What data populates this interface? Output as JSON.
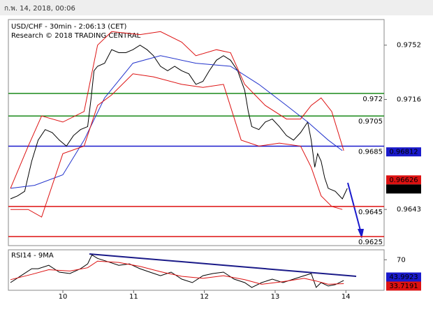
{
  "header": {
    "timestamp": "ก.พ. 14, 2018, 00:06"
  },
  "chart_data": [
    {
      "type": "line",
      "title": "USD/CHF - 30min - 2:06:13 (CET)",
      "subtitle": "Research © 2018 TRADING CENTRAL",
      "xlim": [
        9.23,
        14.54
      ],
      "xticks": [
        10,
        11,
        12,
        13,
        14
      ],
      "ylim": [
        0.9619,
        0.9769
      ],
      "yticks": [
        0.9643,
        0.9716,
        0.9752
      ],
      "series": [
        {
          "color": "#000000",
          "x": [
            9.26,
            9.36,
            9.46,
            9.56,
            9.65,
            9.75,
            9.85,
            9.95,
            10.05,
            10.15,
            10.25,
            10.35,
            10.4,
            10.44,
            10.49,
            10.59,
            10.69,
            10.79,
            10.89,
            10.99,
            11.09,
            11.19,
            11.28,
            11.38,
            11.48,
            11.58,
            11.68,
            11.78,
            11.88,
            11.98,
            12.07,
            12.17,
            12.27,
            12.37,
            12.47,
            12.57,
            12.62,
            12.67,
            12.77,
            12.86,
            12.96,
            13.06,
            13.16,
            13.26,
            13.36,
            13.46,
            13.51,
            13.56,
            13.6,
            13.65,
            13.7,
            13.75,
            13.85,
            13.95,
            14.02
          ],
          "values": [
            0.965,
            0.9652,
            0.9655,
            0.9675,
            0.9689,
            0.9696,
            0.9694,
            0.9689,
            0.9685,
            0.9692,
            0.9696,
            0.9698,
            0.9717,
            0.9735,
            0.9738,
            0.974,
            0.9749,
            0.9747,
            0.9747,
            0.9749,
            0.9752,
            0.9749,
            0.9745,
            0.9738,
            0.9735,
            0.9738,
            0.9735,
            0.9733,
            0.9726,
            0.9728,
            0.9735,
            0.9742,
            0.9745,
            0.9742,
            0.9735,
            0.9722,
            0.9708,
            0.9698,
            0.9696,
            0.9701,
            0.9703,
            0.9698,
            0.9692,
            0.9689,
            0.9694,
            0.9701,
            0.9689,
            0.9671,
            0.968,
            0.9675,
            0.9664,
            0.9657,
            0.9655,
            0.965,
            0.9657
          ]
        },
        {
          "color": "#2233cc",
          "x": [
            9.26,
            9.6,
            10.0,
            10.3,
            10.59,
            10.99,
            11.38,
            11.88,
            12.37,
            12.77,
            13.16,
            13.46,
            13.75,
            13.95
          ],
          "values": [
            0.9657,
            0.9659,
            0.9666,
            0.9689,
            0.9717,
            0.974,
            0.9745,
            0.974,
            0.9738,
            0.9726,
            0.9712,
            0.9701,
            0.9689,
            0.9682
          ]
        },
        {
          "color": "#dd1111",
          "x": [
            9.26,
            9.51,
            9.7,
            10.0,
            10.3,
            10.49,
            10.69,
            11.09,
            11.38,
            11.68,
            11.88,
            12.17,
            12.37,
            12.57,
            12.86,
            13.16,
            13.36,
            13.51,
            13.65,
            13.8,
            13.97
          ],
          "values": [
            0.9657,
            0.9685,
            0.9705,
            0.9701,
            0.9708,
            0.9752,
            0.9761,
            0.9759,
            0.9761,
            0.9754,
            0.9745,
            0.9749,
            0.9747,
            0.9726,
            0.9712,
            0.9703,
            0.9703,
            0.9712,
            0.9717,
            0.9708,
            0.9682
          ]
        },
        {
          "color": "#dd1111",
          "x": [
            9.26,
            9.51,
            9.7,
            10.0,
            10.3,
            10.49,
            10.69,
            10.99,
            11.28,
            11.68,
            11.98,
            12.27,
            12.52,
            12.77,
            13.06,
            13.36,
            13.51,
            13.65,
            13.8,
            13.95
          ],
          "values": [
            0.9643,
            0.9643,
            0.9638,
            0.968,
            0.9685,
            0.9712,
            0.9719,
            0.9733,
            0.9731,
            0.9726,
            0.9724,
            0.9726,
            0.9689,
            0.9685,
            0.9687,
            0.9685,
            0.9671,
            0.9652,
            0.9645,
            0.9643
          ]
        }
      ],
      "levels": [
        {
          "value": 0.972,
          "color": "#1a8a1a"
        },
        {
          "value": 0.9705,
          "color": "#1a8a1a"
        },
        {
          "value": 0.9685,
          "color": "#1a1acc"
        },
        {
          "value": 0.9645,
          "color": "#dd1111"
        },
        {
          "value": 0.9625,
          "color": "#dd1111"
        }
      ],
      "price_tags": [
        {
          "value": 0.96812,
          "color": "#1a1acc"
        },
        {
          "value": 0.96626,
          "color": "#dd1111"
        },
        {
          "value": 0.96613,
          "color": "#000000"
        }
      ]
    },
    {
      "type": "line",
      "title": "RSI14 - 9MA",
      "xlim": [
        9.23,
        14.54
      ],
      "ylim": [
        24,
        85
      ],
      "yticks": [
        70
      ],
      "series": [
        {
          "color": "#000000",
          "x": [
            9.26,
            9.41,
            9.56,
            9.65,
            9.8,
            9.95,
            10.1,
            10.25,
            10.35,
            10.41,
            10.49,
            10.64,
            10.79,
            10.94,
            11.09,
            11.23,
            11.38,
            11.53,
            11.68,
            11.83,
            11.98,
            12.12,
            12.27,
            12.42,
            12.57,
            12.67,
            12.81,
            12.96,
            13.11,
            13.26,
            13.41,
            13.51,
            13.58,
            13.65,
            13.75,
            13.85,
            13.97
          ],
          "values": [
            35.6,
            46.0,
            56.5,
            56.5,
            61.7,
            51.3,
            49.2,
            56.5,
            63.8,
            77.3,
            72.1,
            66.9,
            61.7,
            63.8,
            56.5,
            51.3,
            46.0,
            51.3,
            40.8,
            35.6,
            46.0,
            49.2,
            51.3,
            40.8,
            35.6,
            28.3,
            35.6,
            40.8,
            35.6,
            40.8,
            46.0,
            49.2,
            28.3,
            35.6,
            30.4,
            32.5,
            38.8
          ]
        },
        {
          "color": "#dd1111",
          "x": [
            9.26,
            9.56,
            9.8,
            10.1,
            10.35,
            10.49,
            10.79,
            11.09,
            11.38,
            11.68,
            11.98,
            12.27,
            12.57,
            12.81,
            13.11,
            13.41,
            13.58,
            13.75,
            13.97
          ],
          "values": [
            40,
            48,
            55,
            53,
            58,
            68,
            66,
            60,
            52,
            45,
            42,
            46,
            40,
            33,
            37,
            42,
            38,
            33,
            34
          ]
        }
      ],
      "price_tags": [
        {
          "value": 43.9923,
          "color": "#1a1acc"
        },
        {
          "value": 33.7191,
          "color": "#dd1111"
        }
      ]
    }
  ]
}
